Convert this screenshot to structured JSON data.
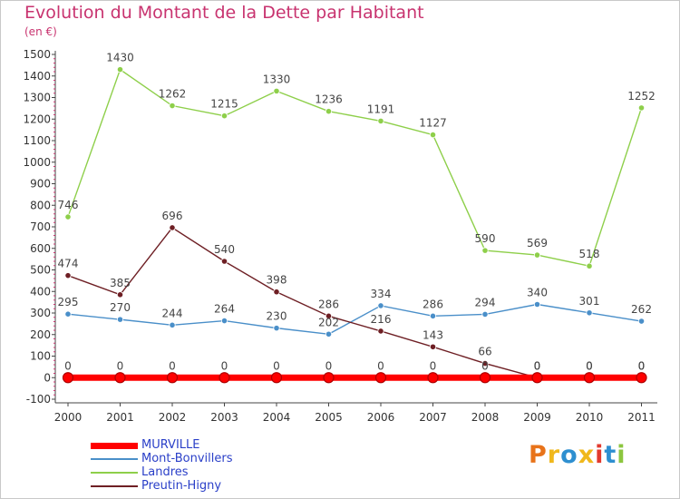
{
  "header": {
    "title": "Evolution du Montant de la Dette par Habitant",
    "subtitle": "(en €)"
  },
  "logo": {
    "text": "Proxiti",
    "colors": [
      "#e8731a",
      "#f0b81c",
      "#2e8fd0",
      "#f0b81c",
      "#e23a2e",
      "#2e8fd0",
      "#8cc63f"
    ]
  },
  "chart_data": {
    "type": "line",
    "x": [
      "2000",
      "2001",
      "2002",
      "2003",
      "2004",
      "2005",
      "2006",
      "2007",
      "2008",
      "2009",
      "2010",
      "2011"
    ],
    "ylim": [
      -100,
      1500
    ],
    "yticks": [
      "1500",
      "1400",
      "1300",
      "1200",
      "1100",
      "1000",
      "900",
      "800",
      "700",
      "600",
      "500",
      "400",
      "300",
      "200",
      "100",
      "0",
      "-100"
    ],
    "grid": false,
    "legend_position": "bottom-left",
    "series": [
      {
        "name": "MURVILLE",
        "color": "#ff0000",
        "values": [
          0,
          0,
          0,
          0,
          0,
          0,
          0,
          0,
          0,
          0,
          0,
          0
        ],
        "labels": [
          "0",
          "0",
          "0",
          "0",
          "0",
          "0",
          "0",
          "0",
          "0",
          "0",
          "0",
          "0"
        ]
      },
      {
        "name": "Mont-Bonvillers",
        "color": "#4a8fc9",
        "values": [
          295,
          270,
          244,
          264,
          230,
          202,
          334,
          286,
          294,
          340,
          301,
          262
        ],
        "labels": [
          "295",
          "270",
          "244",
          "264",
          "230",
          "202",
          "334",
          "286",
          "294",
          "340",
          "301",
          "262"
        ]
      },
      {
        "name": "Landres",
        "color": "#8ecf4a",
        "values": [
          746,
          1430,
          1262,
          1215,
          1330,
          1236,
          1191,
          1127,
          590,
          569,
          518,
          1252
        ],
        "labels": [
          "746",
          "1430",
          "1262",
          "1215",
          "1330",
          "1236",
          "1191",
          "1127",
          "590",
          "569",
          "518",
          "1252"
        ]
      },
      {
        "name": "Preutin-Higny",
        "color": "#6e1f24",
        "values": [
          474,
          385,
          696,
          540,
          398,
          286,
          216,
          143,
          66,
          0,
          0,
          0
        ],
        "labels": [
          "474",
          "385",
          "696",
          "540",
          "398",
          "286",
          "216",
          "143",
          "66",
          "0",
          "0",
          "0"
        ]
      }
    ]
  }
}
